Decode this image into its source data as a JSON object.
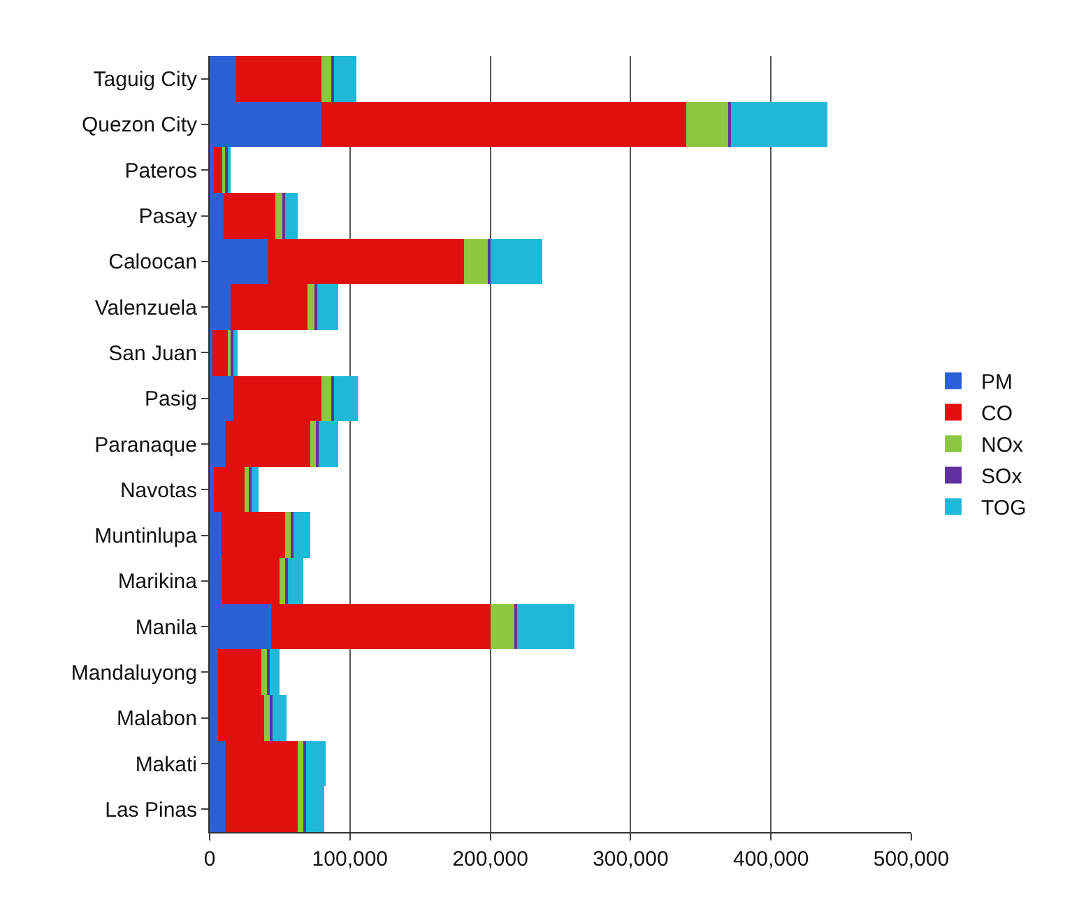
{
  "chart_data": {
    "type": "bar",
    "orientation": "horizontal",
    "stacked": true,
    "categories": [
      "Taguig City",
      "Quezon City",
      "Pateros",
      "Pasay",
      "Caloocan",
      "Valenzuela",
      "San Juan",
      "Pasig",
      "Paranaque",
      "Navotas",
      "Muntinlupa",
      "Marikina",
      "Manila",
      "Mandaluyong",
      "Malabon",
      "Makati",
      "Las Pinas"
    ],
    "series": [
      {
        "name": "PM",
        "color": "#2a5fd6",
        "values": [
          19000,
          80000,
          3000,
          10000,
          42000,
          15000,
          2000,
          17000,
          11000,
          3000,
          8000,
          9000,
          44000,
          6000,
          6000,
          11000,
          11000
        ]
      },
      {
        "name": "CO",
        "color": "#e01010",
        "values": [
          61000,
          260000,
          6000,
          37000,
          139000,
          55000,
          11000,
          63000,
          61000,
          22000,
          46000,
          41000,
          156000,
          31000,
          33000,
          52000,
          52000
        ]
      },
      {
        "name": "NOx",
        "color": "#8dc63f",
        "values": [
          7000,
          30000,
          2000,
          5000,
          17000,
          5000,
          2000,
          7000,
          4000,
          3000,
          4000,
          4000,
          17000,
          4000,
          4000,
          4000,
          4000
        ]
      },
      {
        "name": "SOx",
        "color": "#6030a0",
        "values": [
          2000,
          2000,
          2000,
          2000,
          2000,
          2000,
          2000,
          2000,
          2000,
          2000,
          2000,
          2000,
          2000,
          2000,
          2000,
          2000,
          2000
        ]
      },
      {
        "name": "TOG",
        "color": "#20b8d8",
        "values": [
          16000,
          68000,
          2000,
          9000,
          37000,
          15000,
          3000,
          17000,
          14000,
          5000,
          12000,
          11000,
          41000,
          7000,
          10000,
          14000,
          13000
        ]
      }
    ],
    "xlim": [
      0,
      500000
    ],
    "xticks": [
      0,
      {
        "value": 100000,
        "label": "100,000"
      },
      {
        "value": 200000,
        "label": "200,000"
      },
      {
        "value": 300000,
        "label": "300,000"
      },
      {
        "value": 400000,
        "label": "400,000"
      },
      {
        "value": 500000,
        "label": "500,000"
      }
    ],
    "grid": "x",
    "legend": "right"
  }
}
